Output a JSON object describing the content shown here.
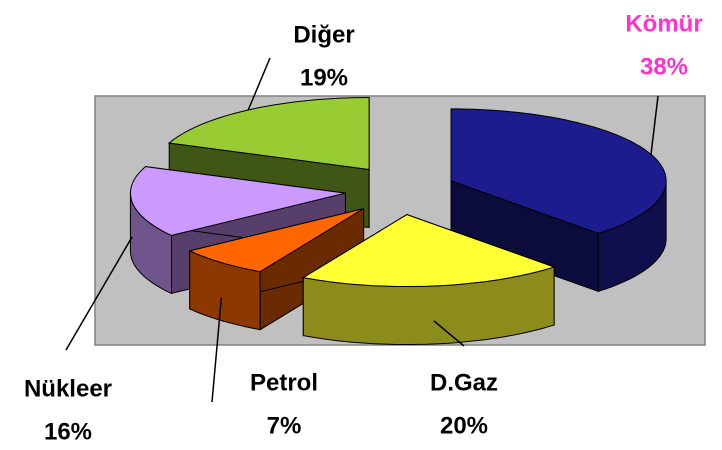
{
  "chart_data": {
    "type": "pie3d",
    "categories": [
      "Kömür",
      "D.Gaz",
      "Petrol",
      "Nükleer",
      "Diğer"
    ],
    "values": [
      38,
      20,
      7,
      16,
      19
    ],
    "value_labels": [
      "38%",
      "20%",
      "7%",
      "16%",
      "19%"
    ],
    "colors": [
      "#1c1c8e",
      "#ffff33",
      "#ff6600",
      "#cc99ff",
      "#99cc33"
    ],
    "label_colors": [
      "#ff33cc",
      "#000000",
      "#000000",
      "#000000",
      "#000000"
    ]
  }
}
